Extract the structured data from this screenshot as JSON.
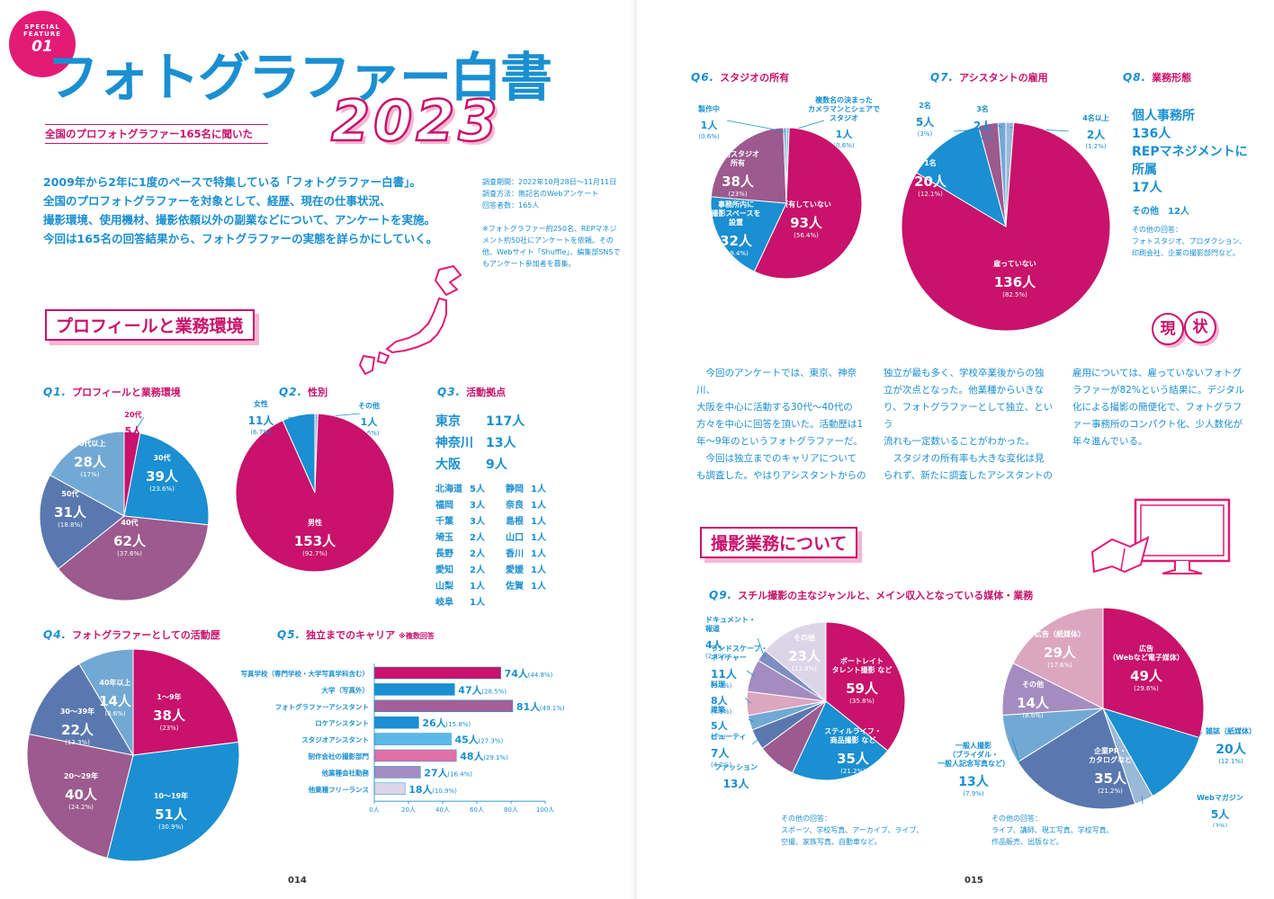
{
  "badge": {
    "line1": "SPECIAL",
    "line2": "FEATURE",
    "num": "01"
  },
  "title": {
    "main": "フォトグラファー白書",
    "year": "2023",
    "subtitle": "全国のプロフォトグラファー165名に聞いた"
  },
  "intro": "2009年から2年に1度のペースで特集している「フォトグラファー白書」。\n全国のプロフォトグラファーを対象として、経歴、現在の仕事状況、\n撮影環境、使用機材、撮影依頼以外の副業などについて、アンケートを実施。\n今回は165名の回答結果から、フォトグラファーの実態を詳らかにしていく。",
  "survey_note": "調査期間：2022年10月28日～11月11日\n調査方法：無記名のWebアンケート\n回答者数：165人\n\n※フォトグラファー約250名、REPマネジ\nメント約50社にアンケートを依頼。その\n他、Webサイト「Shuffle」、編集部SNSで\nもアンケート参加者を募集。",
  "section1": "プロフィールと業務環境",
  "section2": "撮影業務について",
  "colors": {
    "magenta": "#c8126b",
    "purple": "#9c5a8e",
    "steel": "#5a78b0",
    "blue": "#1a8fd1",
    "lightblue": "#72a9d4",
    "pink": "#e070a8",
    "lavender": "#a58cc0",
    "pale": "#dcd5e8",
    "rose": "#dca6c0"
  },
  "q1": {
    "num": "Q1.",
    "title": "プロフィールと業務環境"
  },
  "q2": {
    "num": "Q2.",
    "title": "性別"
  },
  "q3": {
    "num": "Q3.",
    "title": "活動拠点",
    "top": [
      {
        "name": "東京",
        "count": "117人"
      },
      {
        "name": "神奈川",
        "count": "13人"
      },
      {
        "name": "大阪",
        "count": "9人"
      }
    ],
    "others_left": [
      [
        "北海道",
        "5人"
      ],
      [
        "福岡",
        "3人"
      ],
      [
        "千葉",
        "3人"
      ],
      [
        "埼玉",
        "2人"
      ],
      [
        "長野",
        "2人"
      ],
      [
        "愛知",
        "2人"
      ],
      [
        "山梨",
        "1人"
      ],
      [
        "岐阜",
        "1人"
      ]
    ],
    "others_right": [
      [
        "静岡",
        "1人"
      ],
      [
        "奈良",
        "1人"
      ],
      [
        "島根",
        "1人"
      ],
      [
        "山口",
        "1人"
      ],
      [
        "香川",
        "1人"
      ],
      [
        "愛媛",
        "1人"
      ],
      [
        "佐賀",
        "1人"
      ]
    ]
  },
  "q4": {
    "num": "Q4.",
    "title": "フォトグラファーとしての活動歴"
  },
  "q5": {
    "num": "Q5.",
    "title": "独立までのキャリア",
    "note": "※複数回答"
  },
  "q6": {
    "num": "Q6.",
    "title": "スタジオの所有"
  },
  "q7": {
    "num": "Q7.",
    "title": "アシスタントの雇用"
  },
  "q8": {
    "num": "Q8.",
    "title": "業務形態",
    "l1": "個人事務所",
    "v1": "136人",
    "l2a": "REPマネジメントに",
    "l2b": "所属",
    "v2": "17人",
    "l3": "その他",
    "v3": "12人",
    "other": "その他の回答：\nフォトスタジオ、プロダクション、\n印刷会社、企業の撮影部門など。"
  },
  "q9": {
    "num": "Q9.",
    "title": "スチル撮影の主なジャンルと、メイン収入となっている媒体・業務",
    "other_left": "その他の回答：\nスポーツ、学校写真、アーカイブ、ライブ、\n空撮、家族写真、自動車など。",
    "other_right": "その他の回答：\nライブ、講師、現工写真、学校写真、\n作品販売、出版など。"
  },
  "genkyo": {
    "c1": "現",
    "c2": "状"
  },
  "columns": [
    "　今回のアンケートでは、東京、神奈川、\n大阪を中心に活動する30代〜40代の\n方々を中心に回答を頂いた。活動歴は1\n年〜9年のというフォトグラファーだ。\n　今回は独立までのキャリアについて\nも調査した。やはりアシスタントからの",
    "独立が最も多く、学校卒業後からの独\n立が次点となった。他業種からいきな\nり、フォトグラファーとして独立、という\n流れも一定数いることがわかった。\n　スタジオの所有率も大きな変化は見\nられず、新たに調査したアシスタントの",
    "雇用については、雇っていないフォトグ\nラファーが82%という結果に。デジタル\n化による撮影の簡便化で、フォトグラフ\nァー事務所のコンパクト化、少人数化が\n年々進んでいる。"
  ],
  "page_left": "014",
  "page_right": "015",
  "chart_data": [
    {
      "id": "q1",
      "type": "pie",
      "title": "プロフィールと業務環境",
      "slices": [
        {
          "label": "20代",
          "count": "5人",
          "pct": "(3%)",
          "value": 5,
          "color": "#c8126b"
        },
        {
          "label": "30代",
          "count": "39人",
          "pct": "(23.6%)",
          "value": 39,
          "color": "#1a8fd1"
        },
        {
          "label": "40代",
          "count": "62人",
          "pct": "(37.6%)",
          "value": 62,
          "color": "#9c5a8e"
        },
        {
          "label": "50代",
          "count": "31人",
          "pct": "(18.8%)",
          "value": 31,
          "color": "#5a78b0"
        },
        {
          "label": "60代以上",
          "count": "28人",
          "pct": "(17%)",
          "value": 28,
          "color": "#72a9d4"
        }
      ]
    },
    {
      "id": "q2",
      "type": "pie",
      "title": "性別",
      "slices": [
        {
          "label": "その他",
          "count": "1人",
          "pct": "(0.6%)",
          "value": 1,
          "color": "#9ab8d8"
        },
        {
          "label": "男性",
          "count": "153人",
          "pct": "(92.7%)",
          "value": 153,
          "color": "#c8126b"
        },
        {
          "label": "女性",
          "count": "11人",
          "pct": "(6.7%)",
          "value": 11,
          "color": "#1a8fd1"
        }
      ]
    },
    {
      "id": "q4",
      "type": "pie",
      "title": "フォトグラファーとしての活動歴",
      "slices": [
        {
          "label": "1〜9年",
          "count": "38人",
          "pct": "(23%)",
          "value": 38,
          "color": "#c8126b"
        },
        {
          "label": "10〜19年",
          "count": "51人",
          "pct": "(30.9%)",
          "value": 51,
          "color": "#1a8fd1"
        },
        {
          "label": "20〜29年",
          "count": "40人",
          "pct": "(24.2%)",
          "value": 40,
          "color": "#9c5a8e"
        },
        {
          "label": "30〜39年",
          "count": "22人",
          "pct": "(13.3%)",
          "value": 22,
          "color": "#5a78b0"
        },
        {
          "label": "40年以上",
          "count": "14人",
          "pct": "(8.6%)",
          "value": 14,
          "color": "#72a9d4"
        }
      ]
    },
    {
      "id": "q5",
      "type": "bar",
      "title": "独立までのキャリア",
      "categories": [
        "写真学校（専門学校・大学写真学科含む）",
        "大学（写真外）",
        "フォトグラファーアシスタント",
        "ロケアシスタント",
        "スタジオアシスタント",
        "制作会社の撮影部門",
        "他業種会社勤務",
        "他業種フリーランス"
      ],
      "values": [
        74,
        47,
        81,
        26,
        45,
        48,
        27,
        18
      ],
      "counts": [
        "74人",
        "47人",
        "81人",
        "26人",
        "45人",
        "48人",
        "27人",
        "18人"
      ],
      "pcts": [
        "(44.8%)",
        "(28.5%)",
        "(49.1%)",
        "(15.8%)",
        "(27.3%)",
        "(29.1%)",
        "(16.4%)",
        "(10.9%)"
      ],
      "colors": [
        "#c8126b",
        "#1a8fd1",
        "#a3609a",
        "#1a8fd1",
        "#5ab9e6",
        "#e070a8",
        "#a58cc0",
        "#dcd5e8"
      ],
      "ticks": [
        "0人",
        "20人",
        "40人",
        "60人",
        "80人",
        "100人"
      ],
      "xlim": [
        0,
        100
      ]
    },
    {
      "id": "q6",
      "type": "pie",
      "title": "スタジオの所有",
      "slices": [
        {
          "label": "複数名の決まったカメラマンとシェアでスタジオ",
          "count": "1人",
          "pct": "(0.6%)",
          "value": 1,
          "color": "#9ab8d8"
        },
        {
          "label": "所有していない",
          "count": "93人",
          "pct": "(56.4%)",
          "value": 93,
          "color": "#c8126b"
        },
        {
          "label": "事務所内に撮影スペースを設置",
          "count": "32人",
          "pct": "(19.4%)",
          "value": 32,
          "color": "#1a8fd1"
        },
        {
          "label": "専用スタジオ所有",
          "count": "38人",
          "pct": "(23%)",
          "value": 38,
          "color": "#9c5a8e"
        },
        {
          "label": "製作中",
          "count": "1人",
          "pct": "(0.6%)",
          "value": 1,
          "color": "#72a9d4"
        }
      ]
    },
    {
      "id": "q7",
      "type": "pie",
      "title": "アシスタントの雇用",
      "slices": [
        {
          "label": "4名以上",
          "count": "2人",
          "pct": "(1.2%)",
          "value": 2,
          "color": "#9ab8d8"
        },
        {
          "label": "雇っていない",
          "count": "136人",
          "pct": "(82.5%)",
          "value": 136,
          "color": "#c8126b"
        },
        {
          "label": "1名",
          "count": "20人",
          "pct": "(12.1%)",
          "value": 20,
          "color": "#1a8fd1"
        },
        {
          "label": "2名",
          "count": "5人",
          "pct": "(3%)",
          "value": 5,
          "color": "#9c5a8e"
        },
        {
          "label": "3名",
          "count": "2人",
          "pct": "(1.2%)",
          "value": 2,
          "color": "#72a9d4"
        }
      ]
    },
    {
      "id": "q9a",
      "type": "pie",
      "title": "スチル撮影の主なジャンル",
      "slices": [
        {
          "label": "ポートレイト タレント撮影 など",
          "count": "59人",
          "pct": "(35.8%)",
          "value": 59,
          "color": "#c8126b"
        },
        {
          "label": "スティルライフ・商品撮影 など",
          "count": "35人",
          "pct": "(21.2%)",
          "value": 35,
          "color": "#1a8fd1"
        },
        {
          "label": "ファッション",
          "count": "13人",
          "pct": "(7.9%)",
          "value": 13,
          "color": "#9c5a8e"
        },
        {
          "label": "ビューティ",
          "count": "7人",
          "pct": "(4.2%)",
          "value": 7,
          "color": "#5a78b0"
        },
        {
          "label": "建築",
          "count": "5人",
          "pct": "(3%)",
          "value": 5,
          "color": "#72a9d4"
        },
        {
          "label": "料理",
          "count": "8人",
          "pct": "(4.9%)",
          "value": 8,
          "color": "#dca6c0"
        },
        {
          "label": "ランドスケープ・ネイチャー",
          "count": "11人",
          "pct": "(6.7%)",
          "value": 11,
          "color": "#a58cc0"
        },
        {
          "label": "ドキュメント・報道",
          "count": "4人",
          "pct": "(2.4%)",
          "value": 4,
          "color": "#7d8fc0"
        },
        {
          "label": "その他",
          "count": "23人",
          "pct": "(13.9%)",
          "value": 23,
          "color": "#dcd5e8"
        }
      ]
    },
    {
      "id": "q9b",
      "type": "pie",
      "title": "メイン収入となっている媒体・業務",
      "slices": [
        {
          "label": "広告（Webなど電子媒体）",
          "count": "49人",
          "pct": "(29.6%)",
          "value": 49,
          "color": "#c8126b"
        },
        {
          "label": "雑誌（紙媒体）",
          "count": "20人",
          "pct": "(12.1%)",
          "value": 20,
          "color": "#1a8fd1"
        },
        {
          "label": "Webマガジン",
          "count": "5人",
          "pct": "(3%)",
          "value": 5,
          "color": "#9ab8d8"
        },
        {
          "label": "企業PR・カタログなど",
          "count": "35人",
          "pct": "(21.2%)",
          "value": 35,
          "color": "#5a78b0"
        },
        {
          "label": "一般人撮影（ブライダル・一般人記念写真など）",
          "count": "13人",
          "pct": "(7.9%)",
          "value": 13,
          "color": "#72a9d4"
        },
        {
          "label": "その他",
          "count": "14人",
          "pct": "(8.6%)",
          "value": 14,
          "color": "#a58cc0"
        },
        {
          "label": "広告（紙媒体）",
          "count": "29人",
          "pct": "(17.6%)",
          "value": 29,
          "color": "#dca6c0"
        }
      ]
    }
  ]
}
